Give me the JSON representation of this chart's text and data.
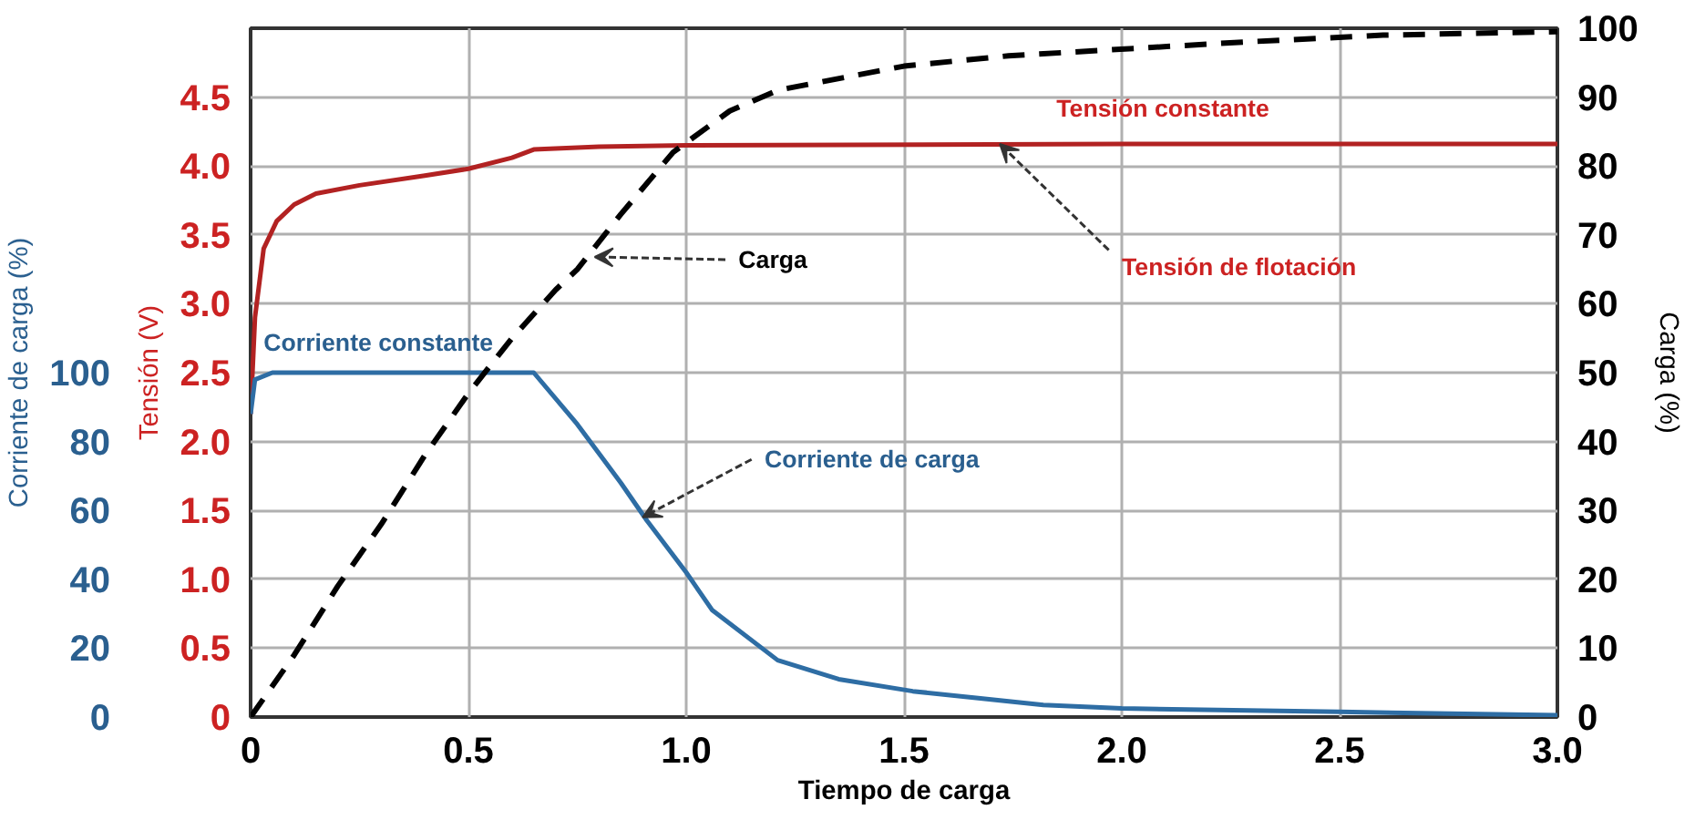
{
  "chart_data": {
    "type": "line",
    "xlabel": "Tiempo de carga",
    "ylabel": "Tensión (V)",
    "y2label": "Carga (%)",
    "y3label": "Corriente de carga (%)",
    "xlim": [
      0,
      3
    ],
    "xticks": [
      0,
      0.5,
      {
        "value": 1,
        "label": "1.0"
      },
      1.5,
      {
        "value": 2,
        "label": "2.0"
      },
      2.5,
      {
        "value": 3,
        "label": "3.0"
      }
    ],
    "ylim": [
      0,
      5
    ],
    "yticks": [
      0,
      0.5,
      {
        "value": 1,
        "label": "1.0"
      },
      1.5,
      {
        "value": 2,
        "label": "2.0"
      },
      2.5,
      {
        "value": 3,
        "label": "3.0"
      },
      3.5,
      {
        "value": 4,
        "label": "4.0"
      },
      4.5
    ],
    "y2lim": [
      0,
      100
    ],
    "y2ticks": [
      0,
      10,
      20,
      30,
      40,
      50,
      60,
      70,
      80,
      90,
      100
    ],
    "y3lim": [
      0,
      200
    ],
    "y3ticks": [
      0,
      20,
      40,
      60,
      80,
      100
    ],
    "grid": true,
    "series": [
      {
        "color": "#b22222",
        "axis": "y",
        "line_style": "solid",
        "x": [
          0,
          0.01,
          0.03,
          0.06,
          0.1,
          0.15,
          0.25,
          0.4,
          0.5,
          0.6,
          0.65,
          0.8,
          1.0,
          2.0,
          3.0
        ],
        "values": [
          2.2,
          2.9,
          3.4,
          3.6,
          3.72,
          3.8,
          3.86,
          3.93,
          3.98,
          4.06,
          4.12,
          4.14,
          4.15,
          4.16,
          4.16
        ]
      },
      {
        "color": "#2e6da4",
        "axis": "y3",
        "line_style": "solid",
        "x": [
          0,
          0.01,
          0.05,
          0.65,
          0.75,
          0.85,
          0.91,
          1.0,
          1.06,
          1.21,
          1.35,
          1.52,
          1.82,
          2.0,
          2.5,
          3.0
        ],
        "values": [
          88,
          98,
          100,
          100,
          85,
          68,
          57,
          42,
          31,
          16.5,
          11,
          7.5,
          3.5,
          2.5,
          1.5,
          0.5
        ]
      },
      {
        "color": "#000000",
        "axis": "y2",
        "line_style": "dashed",
        "x": [
          0,
          0.1,
          0.2,
          0.3,
          0.4,
          0.5,
          0.6,
          0.7,
          0.75,
          0.85,
          0.97,
          1.1,
          1.21,
          1.5,
          1.74,
          2.28,
          2.6,
          3.0
        ],
        "values": [
          0,
          9,
          19,
          28,
          38,
          47,
          55,
          62,
          65,
          73,
          82,
          88,
          91,
          94.5,
          96,
          98,
          99,
          99.5
        ]
      }
    ],
    "annotations": [
      "Tensión constante",
      {
        "text": "Tensión de flotación",
        "x": 1.72,
        "y": 4.16
      },
      {
        "text": "Carga",
        "x": 0.79,
        "y": 3.34
      },
      "Corriente constante",
      {
        "text": "Corriente de carga",
        "x": 0.9,
        "y": 1.45
      }
    ]
  }
}
